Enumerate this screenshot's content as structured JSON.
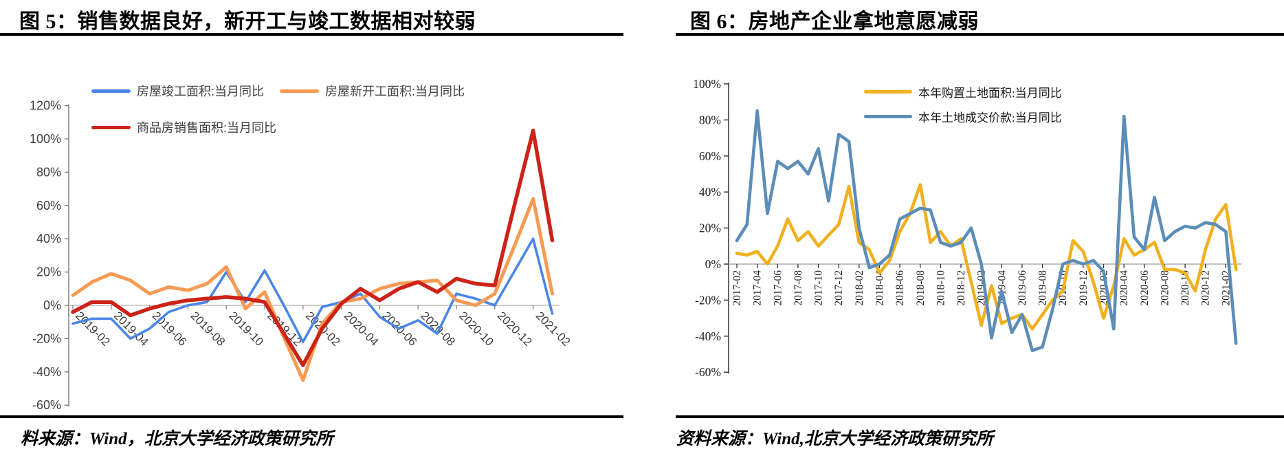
{
  "panels": [
    {
      "title": "图 5：销售数据良好，新开工与竣工数据相对较弱",
      "source": "料来源：Wind，北京大学经济政策研究所"
    },
    {
      "title": "图 6：房地产企业拿地意愿减弱",
      "source": "资料来源：Wind,北京大学经济政策研究所"
    }
  ],
  "chart_data": [
    {
      "type": "line",
      "title": "图 5：销售数据良好，新开工与竣工数据相对较弱",
      "ylabel": "",
      "xlabel": "",
      "ylim": [
        -60,
        120
      ],
      "legend_position": "top",
      "grid": "zero-line-only",
      "y_ticks": [
        {
          "value": 120,
          "label": "120%"
        },
        {
          "value": 100,
          "label": "100%"
        },
        {
          "value": 80,
          "label": "80%"
        },
        {
          "value": 60,
          "label": "60%"
        },
        {
          "value": 40,
          "label": "40%"
        },
        {
          "value": 20,
          "label": "20%"
        },
        {
          "value": 0,
          "label": "0%"
        },
        {
          "value": -20,
          "label": "-20%"
        },
        {
          "value": -40,
          "label": "-40%"
        },
        {
          "value": -60,
          "label": "-60%"
        }
      ],
      "x": [
        "2019-02",
        "2019-03",
        "2019-04",
        "2019-05",
        "2019-06",
        "2019-07",
        "2019-08",
        "2019-09",
        "2019-10",
        "2019-11",
        "2019-12",
        "2020-01",
        "2020-02",
        "2020-03",
        "2020-04",
        "2020-05",
        "2020-06",
        "2020-07",
        "2020-08",
        "2020-09",
        "2020-10",
        "2020-11",
        "2020-12",
        "2021-01",
        "2021-02",
        "2021-03"
      ],
      "x_label_every": 2,
      "series": [
        {
          "name": "房屋竣工面积:当月同比",
          "color": "#4A86E8",
          "width": 3.6,
          "values": [
            -11,
            -8,
            -8,
            -20,
            -14,
            -4,
            0,
            2,
            20,
            2,
            21,
            0,
            -22,
            -1,
            2,
            7,
            -7,
            -14,
            -9,
            -17,
            7,
            4,
            0,
            20,
            40,
            -5
          ]
        },
        {
          "name": "房屋新开工面积:当月同比",
          "color": "#F79A54",
          "width": 5,
          "values": [
            6,
            14,
            19,
            15,
            7,
            11,
            9,
            13,
            23,
            -2,
            8,
            -19,
            -45,
            -11,
            2,
            4,
            10,
            13,
            14,
            15,
            3,
            0,
            7,
            35,
            64,
            7
          ]
        },
        {
          "name": "商品房销售面积:当月同比",
          "color": "#CC2318",
          "width": 5.5,
          "values": [
            -4,
            2,
            2,
            -6,
            -2,
            1,
            3,
            4,
            5,
            4,
            2,
            -17,
            -36,
            -14,
            1,
            10,
            3,
            10,
            14,
            8,
            16,
            13,
            12,
            59,
            105,
            39
          ]
        }
      ]
    },
    {
      "type": "line",
      "title": "图 6：房地产企业拿地意愿减弱",
      "ylabel": "",
      "xlabel": "",
      "ylim": [
        -60,
        100
      ],
      "legend_position": "top",
      "grid": "zero-line-only",
      "y_ticks": [
        {
          "value": 100,
          "label": "100%"
        },
        {
          "value": 80,
          "label": "80%"
        },
        {
          "value": 60,
          "label": "60%"
        },
        {
          "value": 40,
          "label": "40%"
        },
        {
          "value": 20,
          "label": "20%"
        },
        {
          "value": 0,
          "label": "0%"
        },
        {
          "value": -20,
          "label": "-20%"
        },
        {
          "value": -40,
          "label": "-40%"
        },
        {
          "value": -60,
          "label": "-60%"
        }
      ],
      "x": [
        "2017-02",
        "2017-03",
        "2017-04",
        "2017-05",
        "2017-06",
        "2017-07",
        "2017-08",
        "2017-09",
        "2017-10",
        "2017-11",
        "2017-12",
        "2018-01",
        "2018-02",
        "2018-03",
        "2018-04",
        "2018-05",
        "2018-06",
        "2018-07",
        "2018-08",
        "2018-09",
        "2018-10",
        "2018-11",
        "2018-12",
        "2019-01",
        "2019-02",
        "2019-03",
        "2019-04",
        "2019-05",
        "2019-06",
        "2019-07",
        "2019-08",
        "2019-09",
        "2019-10",
        "2019-11",
        "2019-12",
        "2020-01",
        "2020-02",
        "2020-03",
        "2020-04",
        "2020-05",
        "2020-06",
        "2020-07",
        "2020-08",
        "2020-09",
        "2020-10",
        "2020-11",
        "2020-12",
        "2021-01",
        "2021-02",
        "2021-03"
      ],
      "x_label_every": 2,
      "series": [
        {
          "name": "本年购置土地面积:当月同比",
          "color": "#F0B01F",
          "width": 4.6,
          "values": [
            6,
            5,
            7,
            0,
            10,
            25,
            13,
            18,
            10,
            16,
            22,
            43,
            12,
            8,
            -5,
            2,
            18,
            28,
            44,
            12,
            18,
            10,
            14,
            -10,
            -34,
            -12,
            -33,
            -30,
            -28,
            -36,
            -28,
            -20,
            -15,
            13,
            7,
            -10,
            -30,
            -12,
            14,
            5,
            8,
            12,
            -3,
            -3,
            -5,
            -15,
            8,
            25,
            33,
            -3
          ]
        },
        {
          "name": "本年土地成交价款:当月同比",
          "color": "#5B8DB8",
          "width": 4.6,
          "values": [
            13,
            22,
            85,
            28,
            57,
            53,
            57,
            50,
            64,
            35,
            72,
            68,
            20,
            -2,
            0,
            5,
            25,
            28,
            31,
            30,
            12,
            10,
            12,
            20,
            0,
            -41,
            -15,
            -38,
            -28,
            -48,
            -46,
            -25,
            0,
            2,
            0,
            2,
            -4,
            -36,
            82,
            15,
            8,
            37,
            13,
            18,
            21,
            20,
            23,
            22,
            18,
            -44
          ]
        }
      ]
    }
  ]
}
